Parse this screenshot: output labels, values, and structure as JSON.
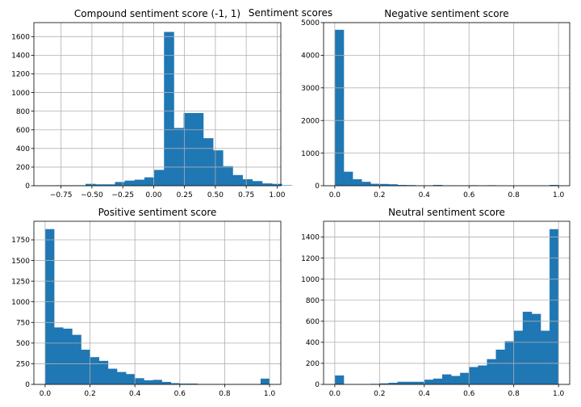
{
  "figure_title": "Sentiment scores",
  "bar_color": "#1f77b4",
  "chart_data": [
    {
      "type": "bar",
      "title": "Compound sentiment score (-1, 1)",
      "xlabel": "",
      "ylabel": "",
      "grid": true,
      "xlim": [
        -0.97,
        1.03
      ],
      "ylim": [
        0,
        1750
      ],
      "xticks": [
        -0.75,
        -0.5,
        -0.25,
        0.0,
        0.25,
        0.5,
        0.75,
        1.0
      ],
      "xtick_labels": [
        "−0.75",
        "−0.50",
        "−0.25",
        "0.00",
        "0.25",
        "0.50",
        "0.75",
        "1.00"
      ],
      "yticks": [
        0,
        200,
        400,
        600,
        800,
        1000,
        1200,
        1400,
        1600
      ],
      "ytick_labels": [
        "0",
        "200",
        "400",
        "600",
        "800",
        "1000",
        "1200",
        "1400",
        "1600"
      ],
      "bin_start": -0.87,
      "bin_width": 0.0795,
      "values": [
        2,
        5,
        5,
        5,
        20,
        15,
        15,
        40,
        55,
        65,
        90,
        170,
        1650,
        620,
        780,
        780,
        510,
        380,
        210,
        115,
        70,
        50,
        25,
        20,
        5
      ]
    },
    {
      "type": "bar",
      "title": "Negative sentiment score",
      "xlabel": "",
      "ylabel": "",
      "grid": true,
      "xlim": [
        -0.05,
        1.05
      ],
      "ylim": [
        0,
        5000
      ],
      "xticks": [
        0.0,
        0.2,
        0.4,
        0.6,
        0.8,
        1.0
      ],
      "xtick_labels": [
        "0.0",
        "0.2",
        "0.4",
        "0.6",
        "0.8",
        "1.0"
      ],
      "yticks": [
        0,
        1000,
        2000,
        3000,
        4000,
        5000
      ],
      "ytick_labels": [
        "0",
        "1000",
        "2000",
        "3000",
        "4000",
        "5000"
      ],
      "bin_start": 0.0,
      "bin_width": 0.04,
      "values": [
        4780,
        430,
        200,
        120,
        60,
        55,
        45,
        25,
        20,
        10,
        10,
        25,
        10,
        10,
        5,
        15,
        10,
        15,
        5,
        5,
        5,
        5,
        5,
        5,
        25
      ]
    },
    {
      "type": "bar",
      "title": "Positive sentiment score",
      "xlabel": "",
      "ylabel": "",
      "grid": true,
      "xlim": [
        -0.05,
        1.05
      ],
      "ylim": [
        0,
        1975
      ],
      "xticks": [
        0.0,
        0.2,
        0.4,
        0.6,
        0.8,
        1.0
      ],
      "xtick_labels": [
        "0.0",
        "0.2",
        "0.4",
        "0.6",
        "0.8",
        "1.0"
      ],
      "yticks": [
        0,
        250,
        500,
        750,
        1000,
        1250,
        1500,
        1750
      ],
      "ytick_labels": [
        "0",
        "250",
        "500",
        "750",
        "1000",
        "1250",
        "1500",
        "1750"
      ],
      "bin_start": 0.0,
      "bin_width": 0.04,
      "values": [
        1880,
        690,
        675,
        600,
        420,
        330,
        285,
        190,
        150,
        125,
        75,
        50,
        55,
        30,
        15,
        10,
        10,
        5,
        5,
        5,
        5,
        5,
        5,
        5,
        70
      ]
    },
    {
      "type": "bar",
      "title": "Neutral sentiment score",
      "xlabel": "",
      "ylabel": "",
      "grid": true,
      "xlim": [
        -0.05,
        1.05
      ],
      "ylim": [
        0,
        1550
      ],
      "xticks": [
        0.0,
        0.2,
        0.4,
        0.6,
        0.8,
        1.0
      ],
      "xtick_labels": [
        "0.0",
        "0.2",
        "0.4",
        "0.6",
        "0.8",
        "1.0"
      ],
      "yticks": [
        0,
        200,
        400,
        600,
        800,
        1000,
        1200,
        1400
      ],
      "ytick_labels": [
        "0",
        "200",
        "400",
        "600",
        "800",
        "1000",
        "1200",
        "1400"
      ],
      "bin_start": 0.0,
      "bin_width": 0.04,
      "values": [
        85,
        0,
        0,
        0,
        5,
        10,
        15,
        25,
        25,
        25,
        45,
        55,
        95,
        80,
        110,
        165,
        180,
        240,
        330,
        410,
        510,
        690,
        670,
        510,
        1475
      ]
    }
  ]
}
